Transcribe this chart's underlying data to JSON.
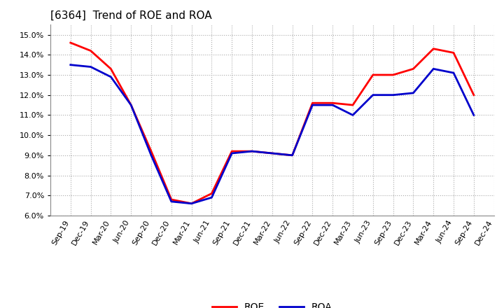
{
  "title": "[6364]  Trend of ROE and ROA",
  "background_color": "#ffffff",
  "plot_bg_color": "#ffffff",
  "grid_color": "#aaaaaa",
  "labels": [
    "Sep-19",
    "Dec-19",
    "Mar-20",
    "Jun-20",
    "Sep-20",
    "Dec-20",
    "Mar-21",
    "Jun-21",
    "Sep-21",
    "Dec-21",
    "Mar-22",
    "Jun-22",
    "Sep-22",
    "Dec-22",
    "Mar-23",
    "Jun-23",
    "Sep-23",
    "Dec-23",
    "Mar-24",
    "Jun-24",
    "Sep-24",
    "Dec-24"
  ],
  "ROE": [
    14.6,
    14.2,
    13.3,
    11.5,
    9.2,
    6.8,
    6.6,
    7.1,
    9.2,
    9.2,
    9.1,
    9.0,
    11.6,
    11.6,
    11.5,
    13.0,
    13.0,
    13.3,
    14.3,
    14.1,
    12.0,
    null
  ],
  "ROA": [
    13.5,
    13.4,
    12.9,
    11.5,
    9.0,
    6.7,
    6.6,
    6.9,
    9.1,
    9.2,
    9.1,
    9.0,
    11.5,
    11.5,
    11.0,
    12.0,
    12.0,
    12.1,
    13.3,
    13.1,
    11.0,
    null
  ],
  "roe_color": "#ff0000",
  "roa_color": "#0000cc",
  "ylim": [
    0.06,
    0.155
  ],
  "yticks": [
    0.06,
    0.07,
    0.08,
    0.09,
    0.1,
    0.11,
    0.12,
    0.13,
    0.14,
    0.15
  ],
  "line_width": 2.0,
  "title_fontsize": 11,
  "tick_fontsize": 8,
  "legend_fontsize": 10
}
